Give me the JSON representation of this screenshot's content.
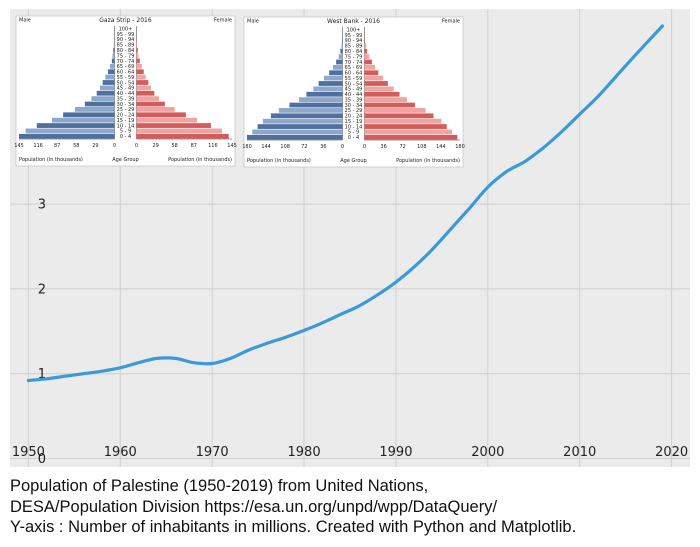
{
  "chart_data": {
    "type": "line",
    "title": "",
    "xlabel": "",
    "ylabel": "",
    "xlim": [
      1948,
      2022
    ],
    "ylim": [
      -0.1,
      5.3
    ],
    "x_ticks": [
      "1950",
      "1960",
      "1970",
      "1980",
      "1990",
      "2000",
      "2010",
      "2020"
    ],
    "y_ticks": [
      "0",
      "1",
      "2",
      "3"
    ],
    "grid": true,
    "line_color": "#3a9ad9",
    "series": [
      {
        "x": [
          1950,
          1952,
          1954,
          1956,
          1958,
          1960,
          1962,
          1964,
          1966,
          1968,
          1970,
          1972,
          1974,
          1976,
          1978,
          1980,
          1982,
          1984,
          1986,
          1988,
          1990,
          1992,
          1994,
          1996,
          1998,
          2000,
          2002,
          2004,
          2006,
          2008,
          2010,
          2012,
          2014,
          2016,
          2019
        ],
        "values": [
          0.92,
          0.94,
          0.97,
          1.0,
          1.03,
          1.07,
          1.13,
          1.18,
          1.18,
          1.13,
          1.12,
          1.18,
          1.28,
          1.36,
          1.43,
          1.51,
          1.6,
          1.7,
          1.8,
          1.93,
          2.08,
          2.26,
          2.47,
          2.71,
          2.95,
          3.2,
          3.38,
          3.5,
          3.66,
          3.85,
          4.06,
          4.27,
          4.51,
          4.75,
          5.1
        ]
      }
    ]
  },
  "caption_lines": [
    "Population of Palestine (1950-2019) from United Nations,",
    "DESA/Population Division https://esa.un.org/unpd/wpp/DataQuery/",
    "Y-axis : Number of inhabitants in millions. Created with Python and Matplotlib."
  ],
  "inset_gaza": {
    "title": "Gaza Strip - 2016",
    "left_label": "Male",
    "right_label": "Female",
    "x_ticks": [
      "145",
      "116",
      "87",
      "58",
      "29",
      "0",
      "0",
      "29",
      "58",
      "87",
      "116",
      "145"
    ],
    "axis_max": 145,
    "bottom_left": "Population (in thousands)",
    "bottom_center": "Age Group",
    "bottom_right": "Population (in thousands)",
    "age_groups": [
      "100+",
      "95 - 99",
      "90 - 94",
      "85 - 89",
      "80 - 84",
      "75 - 79",
      "70 - 74",
      "65 - 69",
      "60 - 64",
      "55 - 59",
      "50 - 54",
      "45 - 49",
      "40 - 44",
      "35 - 39",
      "30 - 34",
      "25 - 29",
      "20 - 24",
      "15 - 19",
      "10 - 14",
      "5 - 9",
      "0 - 4"
    ],
    "male": [
      0,
      0,
      0,
      1,
      2,
      3,
      4,
      7,
      10,
      14,
      18,
      22,
      27,
      35,
      45,
      60,
      78,
      95,
      118,
      135,
      145
    ],
    "female": [
      0,
      0,
      0,
      1,
      2,
      3,
      5,
      8,
      11,
      14,
      18,
      22,
      27,
      34,
      43,
      58,
      75,
      92,
      113,
      130,
      140
    ]
  },
  "inset_westbank": {
    "title": "West Bank - 2016",
    "left_label": "Male",
    "right_label": "Female",
    "x_ticks": [
      "180",
      "144",
      "108",
      "72",
      "36",
      "0",
      "0",
      "36",
      "72",
      "108",
      "144",
      "180"
    ],
    "axis_max": 180,
    "bottom_left": "Population (in thousands)",
    "bottom_center": "Age Group",
    "bottom_right": "Population (in thousands)",
    "age_groups": [
      "100+",
      "95 - 99",
      "90 - 94",
      "85 - 89",
      "80 - 84",
      "75 - 79",
      "70 - 74",
      "65 - 69",
      "60 - 64",
      "55 - 59",
      "50 - 54",
      "45 - 49",
      "40 - 44",
      "35 - 39",
      "30 - 34",
      "25 - 29",
      "20 - 24",
      "15 - 19",
      "10 - 14",
      "5 - 9",
      "0 - 4"
    ],
    "male": [
      0,
      0,
      1,
      2,
      4,
      7,
      12,
      18,
      25,
      35,
      45,
      55,
      68,
      82,
      100,
      120,
      135,
      150,
      160,
      170,
      180
    ],
    "female": [
      0,
      0,
      1,
      3,
      5,
      9,
      14,
      20,
      26,
      35,
      44,
      55,
      66,
      80,
      95,
      115,
      130,
      145,
      155,
      165,
      175
    ]
  }
}
